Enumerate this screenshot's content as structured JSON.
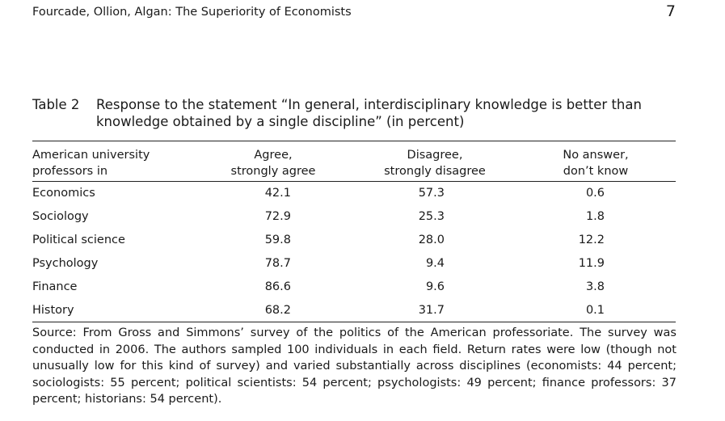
{
  "header": {
    "running_title": "Fourcade, Ollion, Algan: The Superiority of Economists",
    "page_number": "7"
  },
  "table": {
    "label": "Table 2",
    "caption": "Response to the statement “In general, interdisciplinary knowledge is better than knowledge obtained by a single discipline” (in percent)",
    "columns": [
      {
        "line1": "American university",
        "line2": "professors in"
      },
      {
        "line1": "Agree,",
        "line2": "strongly agree"
      },
      {
        "line1": "Disagree,",
        "line2": "strongly disagree"
      },
      {
        "line1": "No answer,",
        "line2": "don’t know"
      }
    ],
    "rows": [
      {
        "discipline": "Economics",
        "agree": "42.1",
        "disagree": "57.3",
        "no_answer": "0.6"
      },
      {
        "discipline": "Sociology",
        "agree": "72.9",
        "disagree": "25.3",
        "no_answer": "1.8"
      },
      {
        "discipline": "Political science",
        "agree": "59.8",
        "disagree": "28.0",
        "no_answer": "12.2"
      },
      {
        "discipline": "Psychology",
        "agree": "78.7",
        "disagree": "9.4",
        "no_answer": "11.9"
      },
      {
        "discipline": "Finance",
        "agree": "86.6",
        "disagree": "9.6",
        "no_answer": "3.8"
      },
      {
        "discipline": "History",
        "agree": "68.2",
        "disagree": "31.7",
        "no_answer": "0.1"
      }
    ],
    "source": "Source: From Gross and Simmons’ survey of the politics of the American professoriate. The survey was conducted in 2006. The authors sampled 100 individuals in each field. Return rates were low (though not unusually low for this kind of survey) and varied substantially across disciplines (economists: 44 percent; sociologists: 55 percent; political scientists: 54 percent; psychologists: 49 percent; finance professors: 37 percent; historians: 54 percent)."
  }
}
